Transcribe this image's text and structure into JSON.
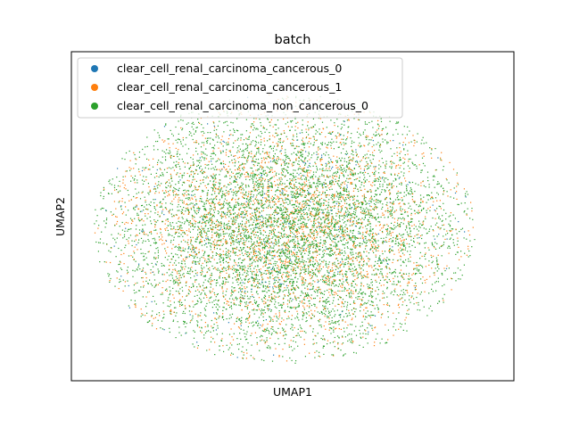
{
  "chart_data": {
    "type": "scatter",
    "title": "batch",
    "xlabel": "UMAP1",
    "ylabel": "UMAP2",
    "xticks": [],
    "yticks": [],
    "grid": false,
    "legend_position": "upper-left",
    "marker": "dot",
    "series": [
      {
        "name": "clear_cell_renal_carcinoma_cancerous_0",
        "color": "#1f77b4",
        "density": "few"
      },
      {
        "name": "clear_cell_renal_carcinoma_cancerous_1",
        "color": "#ff7f0e",
        "density": "many"
      },
      {
        "name": "clear_cell_renal_carcinoma_non_cancerous_0",
        "color": "#2ca02c",
        "density": "most"
      }
    ],
    "shape": "elliptical point cloud, densest at center"
  }
}
